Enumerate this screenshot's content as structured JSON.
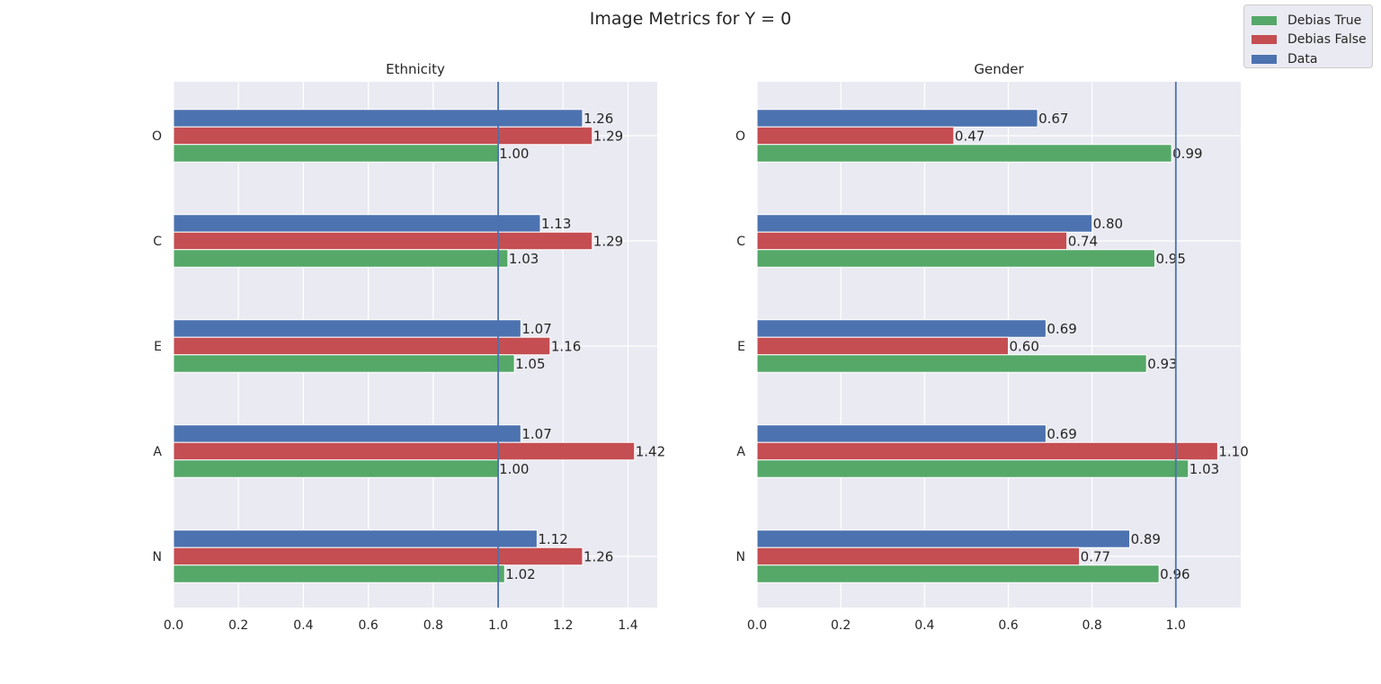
{
  "figure": {
    "title": "Image Metrics for Y = 0"
  },
  "legend": {
    "items": [
      {
        "label": "Debias True",
        "color": "#55a868"
      },
      {
        "label": "Debias False",
        "color": "#c44e52"
      },
      {
        "label": "Data",
        "color": "#4c72b0"
      }
    ]
  },
  "chart_data": [
    {
      "type": "bar",
      "orientation": "horizontal",
      "title": "Ethnicity",
      "categories": [
        "N",
        "A",
        "E",
        "C",
        "O"
      ],
      "xlim": [
        0,
        1.49
      ],
      "xticks": [
        "0.0",
        "0.2",
        "0.4",
        "0.6",
        "0.8",
        "1.0",
        "1.2",
        "1.4"
      ],
      "reference_line": 1.0,
      "grid": true,
      "series": [
        {
          "name": "Data",
          "color": "#4c72b0",
          "values": [
            1.12,
            1.07,
            1.07,
            1.13,
            1.26
          ],
          "labels": [
            "1.12",
            "1.07",
            "1.07",
            "1.13",
            "1.26"
          ]
        },
        {
          "name": "Debias False",
          "color": "#c44e52",
          "values": [
            1.26,
            1.42,
            1.16,
            1.29,
            1.29
          ],
          "labels": [
            "1.26",
            "1.42",
            "1.16",
            "1.29",
            "1.29"
          ]
        },
        {
          "name": "Debias True",
          "color": "#55a868",
          "values": [
            1.02,
            1.0,
            1.05,
            1.03,
            1.0
          ],
          "labels": [
            "1.02",
            "1.00",
            "1.05",
            "1.03",
            "1.00"
          ]
        }
      ]
    },
    {
      "type": "bar",
      "orientation": "horizontal",
      "title": "Gender",
      "categories": [
        "N",
        "A",
        "E",
        "C",
        "O"
      ],
      "xlim": [
        0,
        1.155
      ],
      "xticks": [
        "0.0",
        "0.2",
        "0.4",
        "0.6",
        "0.8",
        "1.0"
      ],
      "reference_line": 1.0,
      "grid": true,
      "series": [
        {
          "name": "Data",
          "color": "#4c72b0",
          "values": [
            0.89,
            0.69,
            0.69,
            0.8,
            0.67
          ],
          "labels": [
            "0.89",
            "0.69",
            "0.69",
            "0.80",
            "0.67"
          ]
        },
        {
          "name": "Debias False",
          "color": "#c44e52",
          "values": [
            0.77,
            1.1,
            0.6,
            0.74,
            0.47
          ],
          "labels": [
            "0.77",
            "1.10",
            "0.60",
            "0.74",
            "0.47"
          ]
        },
        {
          "name": "Debias True",
          "color": "#55a868",
          "values": [
            0.96,
            1.03,
            0.93,
            0.95,
            0.99
          ],
          "labels": [
            "0.96",
            "1.03",
            "0.93",
            "0.95",
            "0.99"
          ]
        }
      ]
    }
  ]
}
